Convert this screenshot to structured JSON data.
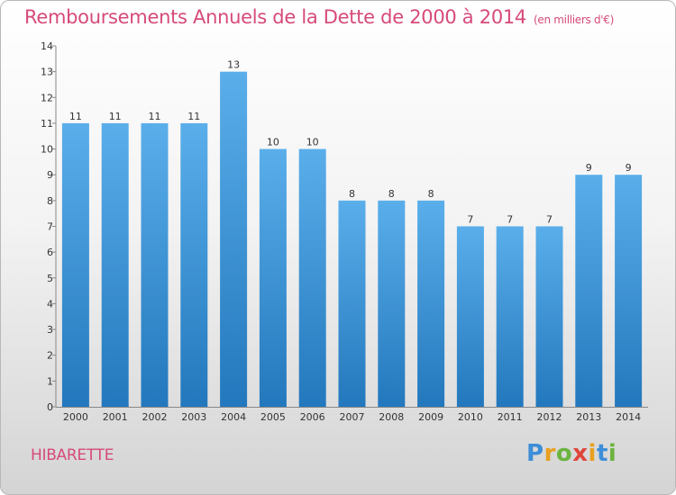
{
  "title": "Remboursements Annuels de la Dette de 2000 à 2014",
  "unit_note": "(en milliers d'€)",
  "place": "HIBARETTE",
  "brand": {
    "letters": [
      "P",
      "r",
      "o",
      "x",
      "i",
      "t",
      "i"
    ],
    "colors": [
      "#3d8ed8",
      "#e8a020",
      "#6bb43f",
      "#e0453a",
      "#e8a020",
      "#3d8ed8",
      "#6bb43f"
    ]
  },
  "colors": {
    "accent": "#d64a7b",
    "bar_top": "#5aaeea",
    "bar_bottom": "#2378bd"
  },
  "chart_data": {
    "type": "bar",
    "title": "Remboursements Annuels de la Dette de 2000 à 2014",
    "xlabel": "",
    "ylabel": "",
    "ylim": [
      0,
      14
    ],
    "yticks": [
      0,
      1,
      2,
      3,
      4,
      5,
      6,
      7,
      8,
      9,
      10,
      11,
      12,
      13,
      14
    ],
    "categories": [
      "2000",
      "2001",
      "2002",
      "2003",
      "2004",
      "2005",
      "2006",
      "2007",
      "2008",
      "2009",
      "2010",
      "2011",
      "2012",
      "2013",
      "2014"
    ],
    "values": [
      11,
      11,
      11,
      11,
      13,
      10,
      10,
      8,
      8,
      8,
      7,
      7,
      7,
      9,
      9
    ],
    "labels": [
      "11",
      "11",
      "11",
      "11",
      "13",
      "10",
      "10",
      "8",
      "8",
      "8",
      "7",
      "7",
      "7",
      "9",
      "9"
    ],
    "grid": false
  }
}
